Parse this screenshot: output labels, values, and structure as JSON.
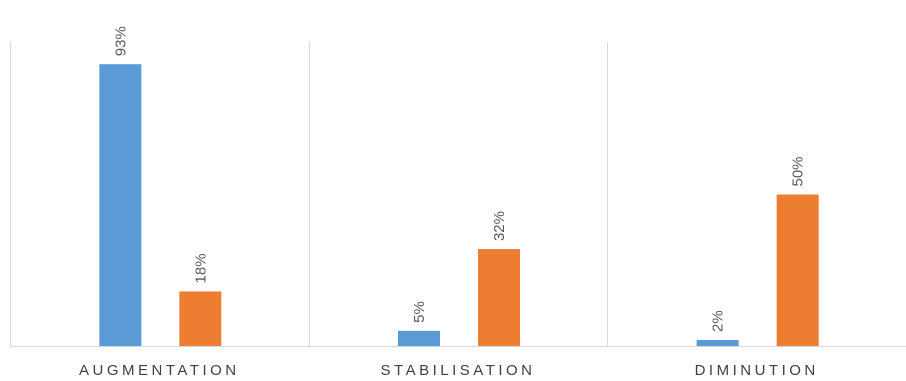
{
  "chart_data": {
    "type": "bar",
    "categories": [
      "AUGMENTATION",
      "STABILISATION",
      "DIMINUTION"
    ],
    "series": [
      {
        "values": [
          93,
          5,
          2
        ],
        "labels": [
          "93%",
          "5%",
          "2%"
        ],
        "color": "#5B9BD5"
      },
      {
        "values": [
          18,
          32,
          50
        ],
        "labels": [
          "18%",
          "32%",
          "50%"
        ],
        "color": "#ED7D31"
      }
    ],
    "ylim": [
      0,
      100
    ],
    "grid": false,
    "separators": true,
    "title": "",
    "xlabel": "",
    "ylabel": ""
  },
  "colors": {
    "axis": "#d9d9d9",
    "label_text": "#595959",
    "category_text": "#404040"
  }
}
